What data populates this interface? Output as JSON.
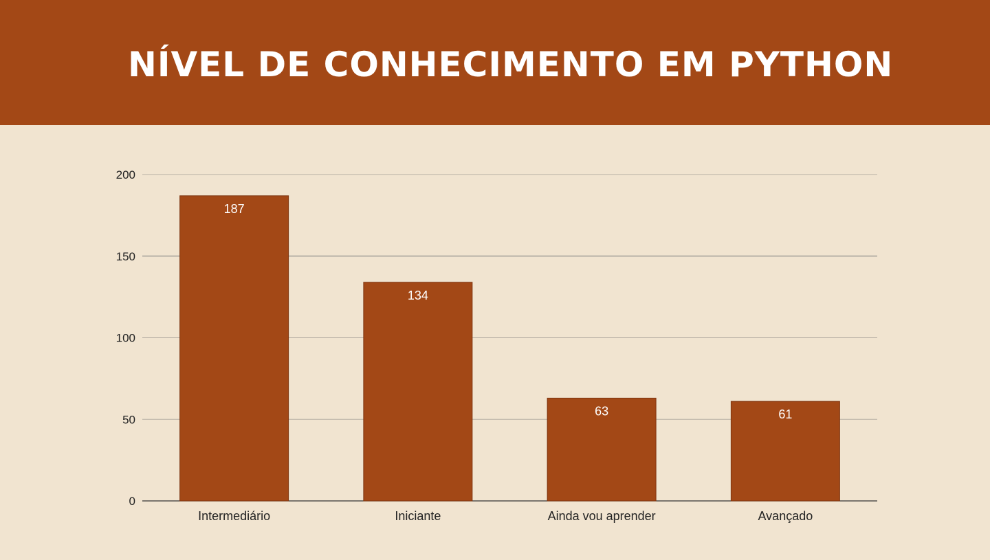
{
  "header": {
    "title": "NÍVEL DE CONHECIMENTO EM PYTHON"
  },
  "colors": {
    "bar": "#a34816",
    "header_bg": "#a34816",
    "background": "#f1e4d0"
  },
  "chart_data": {
    "type": "bar",
    "title": "NÍVEL DE CONHECIMENTO EM PYTHON",
    "categories": [
      "Intermediário",
      "Iniciante",
      "Ainda vou aprender",
      "Avançado"
    ],
    "values": [
      187,
      134,
      63,
      61
    ],
    "xlabel": "",
    "ylabel": "",
    "ylim": [
      0,
      200
    ],
    "yticks": [
      0,
      50,
      100,
      150,
      200
    ],
    "grid": true,
    "legend": "none",
    "data_labels": true
  }
}
